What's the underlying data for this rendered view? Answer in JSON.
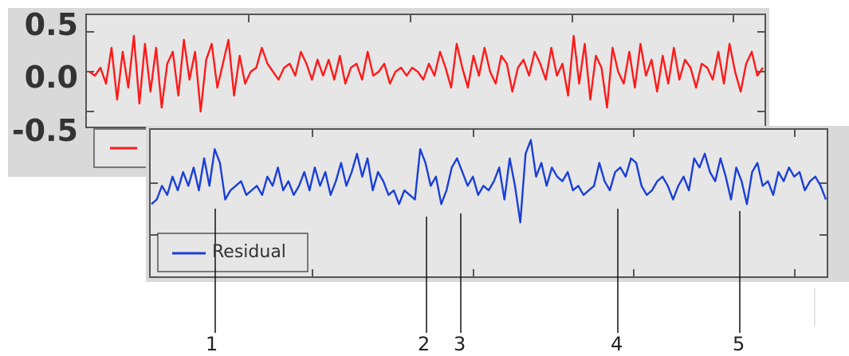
{
  "chart_data": [
    {
      "type": "line",
      "title": "",
      "xlabel": "",
      "ylabel": "",
      "ylim": [
        -0.6,
        0.6
      ],
      "yticks": [
        "0.5",
        "0.0",
        "-0.5"
      ],
      "grid": false,
      "series": [
        {
          "color": "#ff1a1a",
          "values": [
            0.0,
            -0.05,
            0.05,
            -0.15,
            0.3,
            -0.35,
            0.25,
            -0.2,
            0.45,
            -0.4,
            0.35,
            -0.25,
            0.3,
            -0.45,
            0.1,
            0.25,
            -0.3,
            0.4,
            -0.1,
            0.25,
            -0.5,
            0.15,
            0.35,
            -0.2,
            0.1,
            0.4,
            -0.3,
            0.2,
            -0.15,
            0.0,
            0.05,
            0.3,
            0.1,
            0.0,
            -0.1,
            0.05,
            0.1,
            -0.05,
            0.25,
            0.1,
            -0.1,
            0.15,
            -0.05,
            0.15,
            -0.1,
            0.2,
            -0.15,
            0.05,
            0.1,
            -0.1,
            0.25,
            -0.05,
            0.0,
            0.1,
            -0.15,
            0.0,
            0.05,
            -0.05,
            0.05,
            0.0,
            -0.1,
            0.1,
            -0.05,
            0.25,
            0.05,
            -0.2,
            0.35,
            0.05,
            -0.2,
            0.2,
            -0.05,
            0.3,
            0.0,
            -0.15,
            0.2,
            0.1,
            -0.25,
            0.05,
            0.15,
            -0.05,
            0.25,
            0.1,
            -0.1,
            0.3,
            -0.05,
            0.1,
            -0.3,
            0.45,
            -0.15,
            0.35,
            -0.35,
            0.2,
            0.05,
            -0.45,
            0.3,
            0.0,
            -0.15,
            0.25,
            -0.2,
            0.35,
            -0.05,
            0.15,
            -0.25,
            0.2,
            -0.15,
            0.3,
            -0.1,
            0.15,
            0.05,
            -0.2,
            0.1,
            0.05,
            -0.1,
            0.25,
            -0.15,
            0.35,
            0.0,
            -0.25,
            0.1,
            0.25,
            -0.05,
            0.05
          ]
        }
      ],
      "legend": {
        "position": "bottom-left",
        "entries": [
          ""
        ]
      }
    },
    {
      "type": "line",
      "title": "",
      "xlabel": "",
      "ylabel": "",
      "grid": false,
      "series": [
        {
          "name": "Residual",
          "color": "#1a3fd6",
          "values": [
            -0.1,
            -0.05,
            0.1,
            0.0,
            0.2,
            0.05,
            0.25,
            0.1,
            0.3,
            0.05,
            0.4,
            0.1,
            0.5,
            0.35,
            -0.05,
            0.05,
            0.1,
            0.15,
            0.0,
            0.05,
            0.1,
            0.0,
            0.2,
            0.1,
            0.3,
            0.05,
            0.15,
            0.0,
            0.1,
            0.25,
            0.05,
            0.3,
            0.1,
            0.25,
            0.0,
            0.15,
            0.35,
            0.1,
            0.25,
            0.45,
            0.2,
            0.4,
            0.05,
            0.25,
            0.15,
            0.0,
            0.05,
            -0.1,
            0.05,
            0.0,
            -0.05,
            0.5,
            0.35,
            0.1,
            0.2,
            -0.1,
            0.05,
            0.3,
            0.4,
            0.25,
            0.1,
            0.2,
            0.0,
            0.1,
            0.05,
            0.15,
            0.3,
            -0.05,
            0.4,
            0.1,
            -0.3,
            0.45,
            0.6,
            0.2,
            0.35,
            0.1,
            0.3,
            0.2,
            0.15,
            0.25,
            0.05,
            0.1,
            0.0,
            0.05,
            0.1,
            0.35,
            0.15,
            0.05,
            0.25,
            0.3,
            0.2,
            0.4,
            0.35,
            0.1,
            0.0,
            0.05,
            0.15,
            0.2,
            0.1,
            -0.05,
            0.1,
            0.2,
            0.05,
            0.4,
            0.3,
            0.45,
            0.25,
            0.15,
            0.4,
            0.2,
            -0.05,
            0.3,
            0.15,
            -0.1,
            0.25,
            0.35,
            0.1,
            0.15,
            0.0,
            0.25,
            0.15,
            0.3,
            0.2,
            0.25,
            0.05,
            0.15,
            0.2,
            0.1,
            -0.05
          ]
        }
      ],
      "legend": {
        "position": "bottom-left",
        "entries": [
          "Residual"
        ]
      }
    }
  ],
  "annotations": {
    "labels": [
      "1",
      "2",
      "3",
      "4",
      "5"
    ]
  }
}
